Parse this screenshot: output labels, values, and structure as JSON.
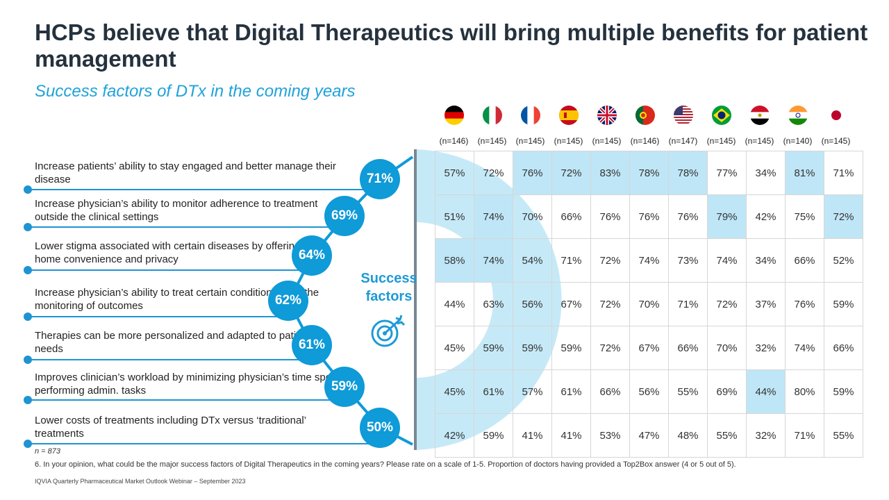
{
  "title": "HCPs believe that Digital Therapeutics will bring multiple benefits for patient management",
  "subtitle": "Success factors of DTx in the coming years",
  "center_label": [
    "Success",
    "factors"
  ],
  "colors": {
    "accent": "#0f9ad8",
    "highlight": "#bfe6f6",
    "title": "#25323e",
    "arc_fill": "#c6e9f7"
  },
  "countries": [
    {
      "flag": "germany-flag-icon",
      "n": "(n=146)"
    },
    {
      "flag": "italy-flag-icon",
      "n": "(n=145)"
    },
    {
      "flag": "france-flag-icon",
      "n": "(n=145)"
    },
    {
      "flag": "spain-flag-icon",
      "n": "(n=145)"
    },
    {
      "flag": "uk-flag-icon",
      "n": "(n=145)"
    },
    {
      "flag": "portugal-flag-icon",
      "n": "(n=146)"
    },
    {
      "flag": "usa-flag-icon",
      "n": "(n=147)"
    },
    {
      "flag": "brazil-flag-icon",
      "n": "(n=145)"
    },
    {
      "flag": "egypt-flag-icon",
      "n": "(n=145)"
    },
    {
      "flag": "india-flag-icon",
      "n": "(n=140)"
    },
    {
      "flag": "japan-flag-icon",
      "n": "(n=145)"
    }
  ],
  "chart_data": {
    "type": "table",
    "factors": [
      {
        "label": "Increase patients’ ability to stay engaged and better manage their disease",
        "total": "71%",
        "values": [
          "57%",
          "72%",
          "76%",
          "72%",
          "83%",
          "78%",
          "78%",
          "77%",
          "34%",
          "81%",
          "71%"
        ],
        "highlight": [
          false,
          false,
          true,
          true,
          true,
          true,
          true,
          false,
          false,
          true,
          false
        ]
      },
      {
        "label": "Increase physician’s ability to monitor adherence to treatment outside the clinical settings",
        "total": "69%",
        "values": [
          "51%",
          "74%",
          "70%",
          "66%",
          "76%",
          "76%",
          "76%",
          "79%",
          "42%",
          "75%",
          "72%"
        ],
        "highlight": [
          false,
          true,
          false,
          false,
          false,
          false,
          false,
          true,
          false,
          false,
          true
        ]
      },
      {
        "label": "Lower stigma associated with certain diseases by offering at-home convenience and privacy",
        "total": "64%",
        "values": [
          "58%",
          "74%",
          "54%",
          "71%",
          "72%",
          "74%",
          "73%",
          "74%",
          "34%",
          "66%",
          "52%"
        ],
        "highlight": [
          true,
          true,
          false,
          false,
          false,
          false,
          false,
          false,
          false,
          false,
          false
        ]
      },
      {
        "label": "Increase physician’s ability to treat certain conditions, incl. the monitoring of outcomes",
        "total": "62%",
        "values": [
          "44%",
          "63%",
          "56%",
          "67%",
          "72%",
          "70%",
          "71%",
          "72%",
          "37%",
          "76%",
          "59%"
        ],
        "highlight": [
          false,
          false,
          false,
          false,
          false,
          false,
          false,
          false,
          false,
          false,
          false
        ]
      },
      {
        "label": "Therapies can be more personalized and adapted to patients’ needs",
        "total": "61%",
        "values": [
          "45%",
          "59%",
          "59%",
          "59%",
          "72%",
          "67%",
          "66%",
          "70%",
          "32%",
          "74%",
          "66%"
        ],
        "highlight": [
          false,
          false,
          false,
          false,
          false,
          false,
          false,
          false,
          false,
          false,
          false
        ]
      },
      {
        "label": "Improves clinician’s workload by minimizing physician’s time spent performing admin. tasks",
        "total": "59%",
        "values": [
          "45%",
          "61%",
          "57%",
          "61%",
          "66%",
          "56%",
          "55%",
          "69%",
          "44%",
          "80%",
          "59%"
        ],
        "highlight": [
          false,
          false,
          false,
          false,
          false,
          false,
          false,
          false,
          true,
          false,
          false
        ]
      },
      {
        "label": "Lower costs of treatments including DTx versus ‘traditional’ treatments",
        "total": "50%",
        "values": [
          "42%",
          "59%",
          "41%",
          "41%",
          "53%",
          "47%",
          "48%",
          "55%",
          "32%",
          "71%",
          "55%"
        ],
        "highlight": [
          false,
          false,
          false,
          false,
          false,
          false,
          false,
          false,
          false,
          false,
          false
        ]
      }
    ]
  },
  "n_total": "n = 873",
  "question": "6. In your opinion, what could be the major success factors of Digital Therapeutics in the coming years? Please rate on a scale of 1-5. Proportion of doctors having provided a Top2Box answer (4 or 5 out of 5).",
  "footer": "IQVIA Quarterly Pharmaceutical Market Outlook Webinar – September 2023"
}
